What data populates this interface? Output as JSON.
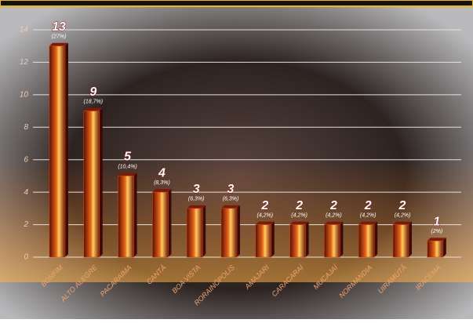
{
  "chart_data": {
    "type": "bar",
    "categories": [
      "BONFIM",
      "ALTO ALEGRE",
      "PACARAIMA",
      "CANTÁ",
      "BOA VISTA",
      "RORAINÓPOLIS",
      "AMAJARI",
      "CARACARAÍ",
      "MUCAJAÍ",
      "NORMANDIA",
      "UIRAMUTÃ",
      "IRACEMA"
    ],
    "values": [
      13,
      9,
      5,
      4,
      3,
      3,
      2,
      2,
      2,
      2,
      2,
      1
    ],
    "percent_labels": [
      "(27%)",
      "(18,7%)",
      "(10,4%)",
      "(8,3%)",
      "(6,3%)",
      "(6,3%)",
      "(4,2%)",
      "(4,2%)",
      "(4,2%)",
      "(4,2%)",
      "(4,2%)",
      "(2%)"
    ],
    "color": "#d2460e",
    "ylim": [
      0,
      14
    ],
    "yticks": [
      0,
      2,
      4,
      6,
      8,
      10,
      12,
      14
    ],
    "grid": true
  }
}
